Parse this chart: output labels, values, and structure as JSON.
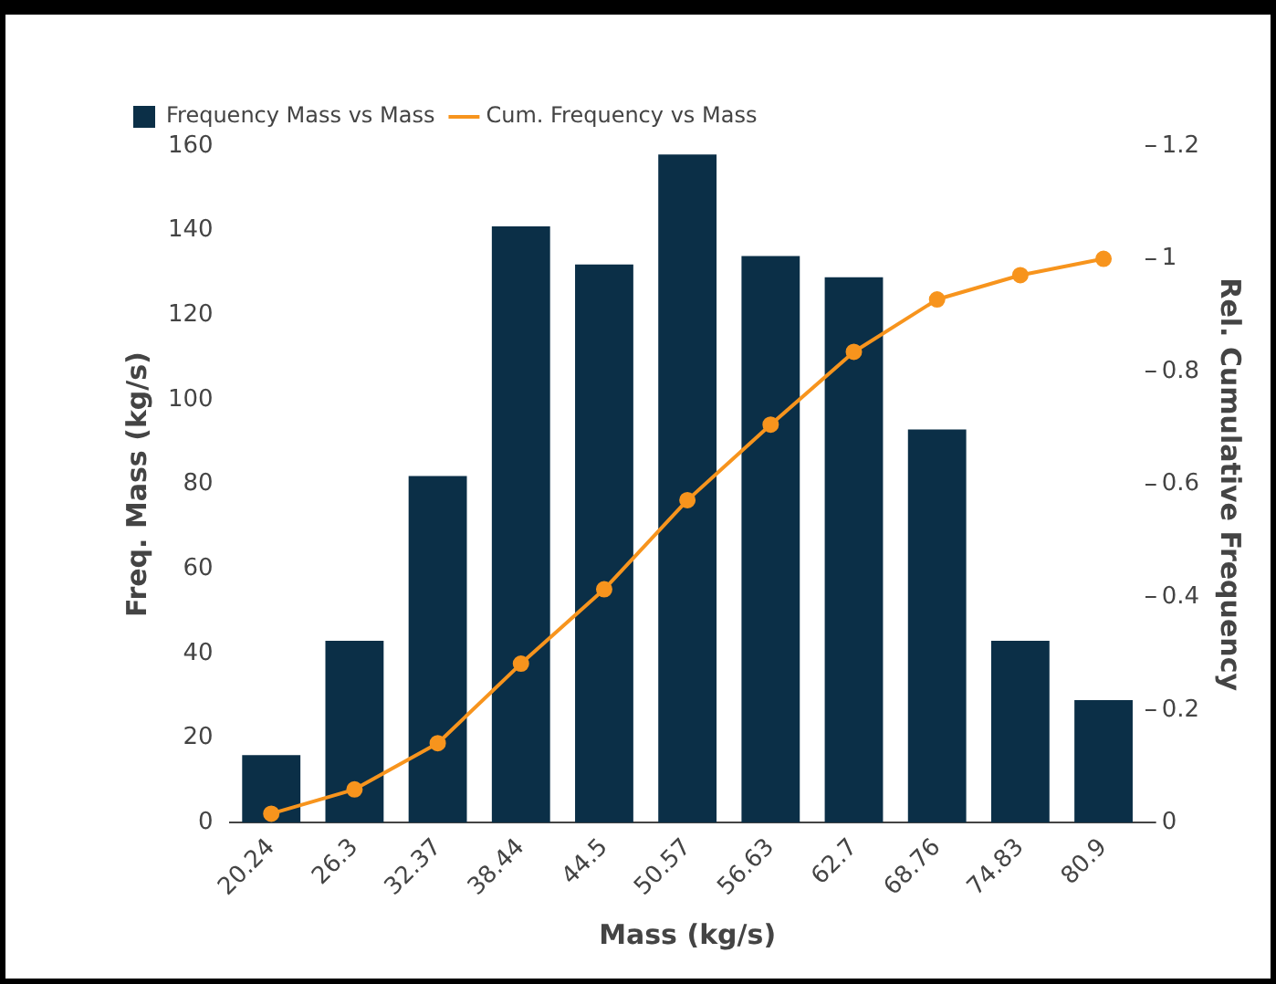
{
  "chart_data": {
    "type": "bar",
    "xlabel": "Mass (kg/s)",
    "ylabel": "Freq. Mass (kg/s)",
    "y2label": "Rel. Cumulative Frequency",
    "categories": [
      "20.24",
      "26.3",
      "32.37",
      "38.44",
      "44.5",
      "50.57",
      "56.63",
      "62.7",
      "68.76",
      "74.83",
      "80.9"
    ],
    "series": [
      {
        "name": "Frequency Mass vs Mass",
        "color": "#0b2f47",
        "values": [
          16,
          43,
          82,
          141,
          132,
          158,
          134,
          129,
          93,
          43,
          29
        ]
      },
      {
        "name": "Cum. Frequency vs Mass",
        "type": "line",
        "axis": "y2",
        "color": "#f7941d",
        "marker": "circle",
        "line_style": "solid",
        "values": [
          0.016,
          0.059,
          0.141,
          0.282,
          0.414,
          0.572,
          0.706,
          0.835,
          0.928,
          0.971,
          1.0
        ]
      }
    ],
    "ylim": [
      0,
      160
    ],
    "yticks": [
      0,
      20,
      40,
      60,
      80,
      100,
      120,
      140,
      160
    ],
    "y2lim": [
      0,
      1.2
    ],
    "y2ticks": [
      0,
      0.2,
      0.4,
      0.6,
      0.8,
      1,
      1.2
    ],
    "grid": false,
    "legend": "top left"
  }
}
